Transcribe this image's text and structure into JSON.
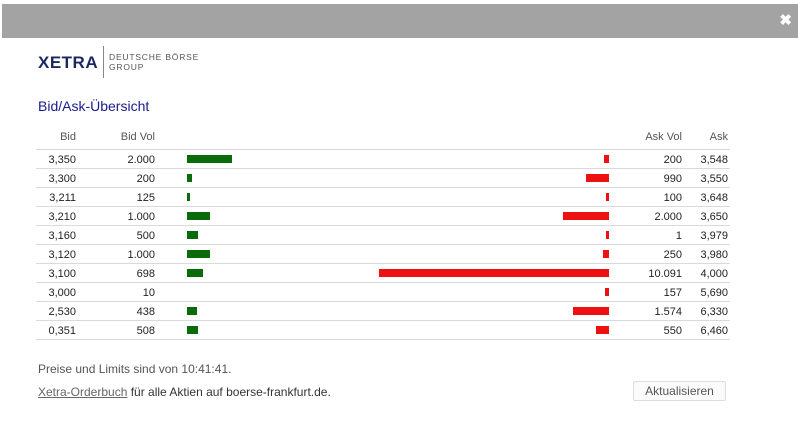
{
  "window": {
    "close_glyph": "✖"
  },
  "logo": {
    "main": "XETRA",
    "sub_line1": "DEUTSCHE BÖRSE",
    "sub_line2": "GROUP"
  },
  "section_title": "Bid/Ask-Übersicht",
  "table": {
    "headers": {
      "bid": "Bid",
      "bid_vol": "Bid Vol",
      "ask_vol": "Ask Vol",
      "ask": "Ask"
    },
    "rows": [
      {
        "bid": "3,350",
        "bid_vol": "2.000",
        "ask_vol": "200",
        "ask": "3,548"
      },
      {
        "bid": "3,300",
        "bid_vol": "200",
        "ask_vol": "990",
        "ask": "3,550"
      },
      {
        "bid": "3,211",
        "bid_vol": "125",
        "ask_vol": "100",
        "ask": "3,648"
      },
      {
        "bid": "3,210",
        "bid_vol": "1.000",
        "ask_vol": "2.000",
        "ask": "3,650"
      },
      {
        "bid": "3,160",
        "bid_vol": "500",
        "ask_vol": "1",
        "ask": "3,979"
      },
      {
        "bid": "3,120",
        "bid_vol": "1.000",
        "ask_vol": "250",
        "ask": "3,980"
      },
      {
        "bid": "3,100",
        "bid_vol": "698",
        "ask_vol": "10.091",
        "ask": "4,000"
      },
      {
        "bid": "3,000",
        "bid_vol": "10",
        "ask_vol": "157",
        "ask": "5,690"
      },
      {
        "bid": "2,530",
        "bid_vol": "438",
        "ask_vol": "1.574",
        "ask": "6,330"
      },
      {
        "bid": "0,351",
        "bid_vol": "508",
        "ask_vol": "550",
        "ask": "6,460"
      }
    ]
  },
  "volumes": {
    "bid": [
      2000,
      200,
      125,
      1000,
      500,
      1000,
      698,
      10,
      438,
      508
    ],
    "ask": [
      200,
      990,
      100,
      2000,
      1,
      250,
      10091,
      157,
      1574,
      550
    ]
  },
  "colors": {
    "bid_bar": "#0a6b0a",
    "ask_bar": "#ee1111",
    "title": "#1a1a8c",
    "topbar": "#a3a3a3"
  },
  "footer": {
    "timestamp_note": "Preise und Limits sind von 10:41:41.",
    "orderbook_link": "Xetra-Orderbuch",
    "orderbook_suffix": " für alle Aktien auf boerse-frankfurt.de.",
    "refresh_button": "Aktualisieren"
  }
}
